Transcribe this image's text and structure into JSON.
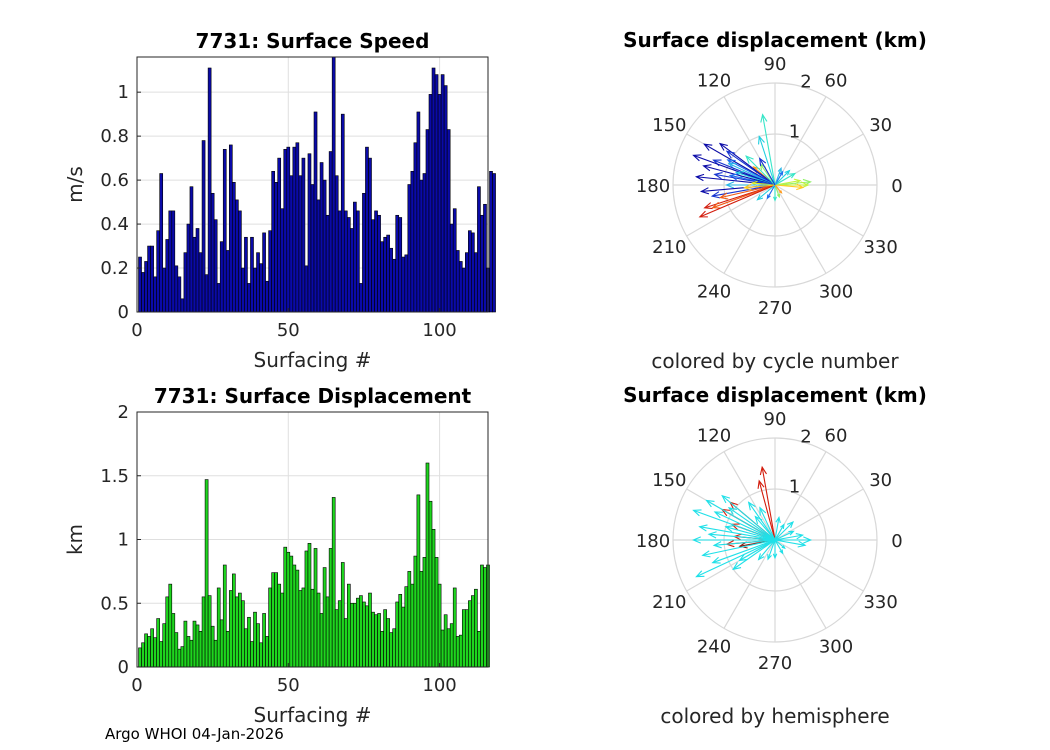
{
  "footer": {
    "label": "Argo WHOI 04-Jan-2026"
  },
  "chart_data": [
    {
      "id": "speed",
      "type": "bar",
      "title": "7731: Surface Speed",
      "xlabel": "Surfacing #",
      "ylabel": "m/s",
      "xlim": [
        0,
        116
      ],
      "ylim": [
        0,
        1.16
      ],
      "xticks": [
        0,
        50,
        100
      ],
      "yticks": [
        0,
        0.2,
        0.4,
        0.6,
        0.8,
        1
      ],
      "x_start": 1,
      "color": "#0a0aa8",
      "values": [
        0.25,
        0.18,
        0.23,
        0.3,
        0.3,
        0.16,
        0.37,
        0.63,
        0.2,
        0.33,
        0.46,
        0.46,
        0.21,
        0.16,
        0.06,
        0.27,
        0.4,
        0.57,
        0.34,
        0.38,
        0.27,
        0.78,
        0.17,
        1.11,
        0.54,
        0.42,
        0.13,
        0.32,
        0.74,
        0.28,
        0.76,
        0.59,
        0.51,
        0.46,
        0.2,
        0.34,
        0.13,
        0.34,
        0.2,
        0.27,
        0.22,
        0.36,
        0.14,
        0.37,
        0.64,
        0.59,
        0.7,
        0.47,
        0.74,
        0.75,
        0.62,
        0.75,
        0.77,
        0.62,
        0.7,
        0.21,
        0.72,
        0.58,
        0.91,
        0.51,
        0.68,
        0.6,
        0.44,
        0.73,
        1.16,
        0.62,
        0.46,
        0.9,
        0.46,
        0.43,
        0.38,
        0.5,
        0.46,
        0.13,
        0.54,
        0.75,
        0.7,
        0.42,
        0.46,
        0.44,
        0.32,
        0.34,
        0.35,
        0.29,
        0.24,
        0.44,
        0.43,
        0.25,
        0.26,
        0.58,
        0.64,
        0.77,
        0.91,
        0.6,
        0.63,
        0.83,
        0.99,
        1.11,
        1.08,
        0.99,
        1.08,
        1.03,
        0.83,
        0.4,
        0.47,
        0.28,
        0.23,
        0.2,
        0.27,
        0.37,
        0.36,
        0.27,
        0.57,
        0.44,
        0.49,
        0.2,
        0.64,
        0.63
      ]
    },
    {
      "id": "displacement",
      "type": "bar",
      "title": "7731: Surface Displacement",
      "xlabel": "Surfacing #",
      "ylabel": "km",
      "xlim": [
        0,
        116
      ],
      "ylim": [
        0,
        2
      ],
      "xticks": [
        0,
        50,
        100
      ],
      "yticks": [
        0,
        0.5,
        1,
        1.5,
        2
      ],
      "x_start": 1,
      "color": "#1ed51e",
      "values": [
        0.15,
        0.19,
        0.26,
        0.24,
        0.3,
        0.23,
        0.38,
        0.2,
        0.34,
        0.55,
        0.65,
        0.42,
        0.27,
        0.14,
        0.16,
        0.36,
        0.24,
        0.21,
        0.36,
        0.33,
        0.28,
        0.55,
        1.47,
        0.56,
        0.32,
        0.21,
        0.62,
        0.37,
        0.8,
        0.28,
        0.6,
        0.73,
        0.55,
        0.58,
        0.52,
        0.3,
        0.39,
        0.2,
        0.43,
        0.34,
        0.19,
        0.42,
        0.24,
        0.62,
        0.74,
        0.74,
        0.65,
        0.58,
        0.94,
        0.9,
        0.87,
        0.8,
        0.76,
        0.6,
        0.62,
        0.91,
        0.97,
        0.61,
        0.93,
        0.58,
        0.42,
        0.78,
        0.55,
        0.93,
        1.33,
        0.45,
        0.52,
        0.82,
        0.38,
        0.65,
        0.5,
        0.5,
        0.54,
        0.56,
        0.51,
        0.48,
        0.58,
        0.43,
        0.41,
        0.42,
        0.28,
        0.45,
        0.38,
        0.27,
        0.3,
        0.51,
        0.57,
        0.47,
        0.63,
        0.75,
        0.65,
        0.87,
        1.35,
        0.75,
        0.86,
        1.6,
        1.3,
        1.08,
        0.86,
        0.65,
        0.29,
        0.41,
        0.3,
        0.34,
        0.62,
        0.24,
        0.25,
        0.45,
        0.45,
        0.52,
        0.56,
        0.61,
        0.28,
        0.8,
        0.78,
        0.8
      ]
    },
    {
      "id": "polar-cycle",
      "type": "polar-quiver",
      "title": "Surface displacement (km)",
      "subtitle": "colored by cycle number",
      "rlim": [
        0,
        2
      ],
      "r_ticks": [
        "1",
        "2"
      ],
      "theta_ticks": [
        "0",
        "30",
        "60",
        "90",
        "120",
        "150",
        "180",
        "210",
        "240",
        "270",
        "300",
        "330"
      ],
      "vectors": [
        {
          "angle_deg": 100,
          "r_km": 1.4,
          "color": "#37e6c8"
        },
        {
          "angle_deg": 108,
          "r_km": 1.0,
          "color": "#20cfe0"
        },
        {
          "angle_deg": 140,
          "r_km": 0.55,
          "color": "#ff9a1a"
        },
        {
          "angle_deg": 143,
          "r_km": 1.35,
          "color": "#0a0aa8"
        },
        {
          "angle_deg": 145,
          "r_km": 1.15,
          "color": "#1533d0"
        },
        {
          "angle_deg": 150,
          "r_km": 1.6,
          "color": "#0a0aa8"
        },
        {
          "angle_deg": 152,
          "r_km": 1.05,
          "color": "#1c6df0"
        },
        {
          "angle_deg": 155,
          "r_km": 1.0,
          "color": "#2bb8e8"
        },
        {
          "angle_deg": 158,
          "r_km": 1.3,
          "color": "#1533d0"
        },
        {
          "angle_deg": 160,
          "r_km": 1.7,
          "color": "#0a0aa8"
        },
        {
          "angle_deg": 162,
          "r_km": 0.8,
          "color": "#20cfe0"
        },
        {
          "angle_deg": 165,
          "r_km": 1.45,
          "color": "#0a0aa8"
        },
        {
          "angle_deg": 168,
          "r_km": 0.9,
          "color": "#1c6df0"
        },
        {
          "angle_deg": 170,
          "r_km": 1.2,
          "color": "#1533d0"
        },
        {
          "angle_deg": 174,
          "r_km": 1.55,
          "color": "#0a0aa8"
        },
        {
          "angle_deg": 175,
          "r_km": 0.45,
          "color": "#e0f020"
        },
        {
          "angle_deg": 180,
          "r_km": 0.95,
          "color": "#2bb8e8"
        },
        {
          "angle_deg": 185,
          "r_km": 1.45,
          "color": "#0a0aa8"
        },
        {
          "angle_deg": 190,
          "r_km": 1.25,
          "color": "#1533d0"
        },
        {
          "angle_deg": 193,
          "r_km": 1.1,
          "color": "#f05a14"
        },
        {
          "angle_deg": 198,
          "r_km": 1.45,
          "color": "#d31c0c"
        },
        {
          "angle_deg": 200,
          "r_km": 1.3,
          "color": "#f05a14"
        },
        {
          "angle_deg": 203,
          "r_km": 1.6,
          "color": "#d31c0c"
        },
        {
          "angle_deg": 185,
          "r_km": 0.6,
          "color": "#ffc91e"
        },
        {
          "angle_deg": 10,
          "r_km": 0.5,
          "color": "#c4f23c"
        },
        {
          "angle_deg": 5,
          "r_km": 0.7,
          "color": "#92f26a"
        },
        {
          "angle_deg": 0,
          "r_km": 0.65,
          "color": "#c4f23c"
        },
        {
          "angle_deg": 355,
          "r_km": 0.55,
          "color": "#ffc91e"
        },
        {
          "angle_deg": 30,
          "r_km": 0.45,
          "color": "#37e6c8"
        },
        {
          "angle_deg": 45,
          "r_km": 0.4,
          "color": "#20cfe0"
        },
        {
          "angle_deg": 60,
          "r_km": 0.3,
          "color": "#1c6df0"
        },
        {
          "angle_deg": 70,
          "r_km": 0.35,
          "color": "#2bb8e8"
        },
        {
          "angle_deg": 270,
          "r_km": 0.3,
          "color": "#37e6c8"
        },
        {
          "angle_deg": 290,
          "r_km": 0.25,
          "color": "#92f26a"
        },
        {
          "angle_deg": 240,
          "r_km": 0.3,
          "color": "#1c6df0"
        },
        {
          "angle_deg": 220,
          "r_km": 0.45,
          "color": "#20cfe0"
        },
        {
          "angle_deg": 125,
          "r_km": 0.5,
          "color": "#92f26a"
        },
        {
          "angle_deg": 135,
          "r_km": 0.8,
          "color": "#37e6c8"
        },
        {
          "angle_deg": 120,
          "r_km": 0.6,
          "color": "#1533d0"
        },
        {
          "angle_deg": 310,
          "r_km": 0.2,
          "color": "#ff9a1a"
        }
      ]
    },
    {
      "id": "polar-hemisphere",
      "type": "polar-quiver",
      "title": "Surface displacement (km)",
      "subtitle": "colored by hemisphere",
      "rlim": [
        0,
        2
      ],
      "r_ticks": [
        "1",
        "2"
      ],
      "theta_ticks": [
        "0",
        "30",
        "60",
        "90",
        "120",
        "150",
        "180",
        "210",
        "240",
        "270",
        "300",
        "330"
      ],
      "vectors": [
        {
          "angle_deg": 100,
          "r_km": 1.45,
          "color": "#d31c0c"
        },
        {
          "angle_deg": 105,
          "r_km": 1.2,
          "color": "#d31c0c"
        },
        {
          "angle_deg": 140,
          "r_km": 1.15,
          "color": "#d31c0c"
        },
        {
          "angle_deg": 150,
          "r_km": 1.2,
          "color": "#d31c0c"
        },
        {
          "angle_deg": 160,
          "r_km": 0.9,
          "color": "#d31c0c"
        },
        {
          "angle_deg": 185,
          "r_km": 0.95,
          "color": "#d31c0c"
        },
        {
          "angle_deg": 190,
          "r_km": 0.7,
          "color": "#8a1a10"
        },
        {
          "angle_deg": 175,
          "r_km": 0.8,
          "color": "#d31c0c"
        },
        {
          "angle_deg": 140,
          "r_km": 1.35,
          "color": "#20e0e8"
        },
        {
          "angle_deg": 145,
          "r_km": 1.1,
          "color": "#20e0e8"
        },
        {
          "angle_deg": 150,
          "r_km": 1.55,
          "color": "#20e0e8"
        },
        {
          "angle_deg": 155,
          "r_km": 1.3,
          "color": "#20e0e8"
        },
        {
          "angle_deg": 160,
          "r_km": 1.7,
          "color": "#20e0e8"
        },
        {
          "angle_deg": 165,
          "r_km": 1.0,
          "color": "#20e0e8"
        },
        {
          "angle_deg": 170,
          "r_km": 1.5,
          "color": "#20e0e8"
        },
        {
          "angle_deg": 175,
          "r_km": 1.3,
          "color": "#20e0e8"
        },
        {
          "angle_deg": 180,
          "r_km": 1.6,
          "color": "#20e0e8"
        },
        {
          "angle_deg": 185,
          "r_km": 1.2,
          "color": "#20e0e8"
        },
        {
          "angle_deg": 192,
          "r_km": 1.45,
          "color": "#20e0e8"
        },
        {
          "angle_deg": 200,
          "r_km": 1.3,
          "color": "#20e0e8"
        },
        {
          "angle_deg": 205,
          "r_km": 1.7,
          "color": "#20e0e8"
        },
        {
          "angle_deg": 215,
          "r_km": 1.0,
          "color": "#20e0e8"
        },
        {
          "angle_deg": 230,
          "r_km": 0.5,
          "color": "#20e0e8"
        },
        {
          "angle_deg": 250,
          "r_km": 0.4,
          "color": "#20e0e8"
        },
        {
          "angle_deg": 270,
          "r_km": 0.35,
          "color": "#20e0e8"
        },
        {
          "angle_deg": 300,
          "r_km": 0.3,
          "color": "#20e0e8"
        },
        {
          "angle_deg": 0,
          "r_km": 0.7,
          "color": "#20e0e8"
        },
        {
          "angle_deg": 10,
          "r_km": 0.55,
          "color": "#20e0e8"
        },
        {
          "angle_deg": 350,
          "r_km": 0.6,
          "color": "#20e0e8"
        },
        {
          "angle_deg": 25,
          "r_km": 0.4,
          "color": "#20e0e8"
        },
        {
          "angle_deg": 45,
          "r_km": 0.5,
          "color": "#20e0e8"
        },
        {
          "angle_deg": 60,
          "r_km": 0.35,
          "color": "#20e0e8"
        },
        {
          "angle_deg": 80,
          "r_km": 0.45,
          "color": "#20e0e8"
        },
        {
          "angle_deg": 115,
          "r_km": 0.7,
          "color": "#20e0e8"
        },
        {
          "angle_deg": 125,
          "r_km": 0.9,
          "color": "#20e0e8"
        },
        {
          "angle_deg": 130,
          "r_km": 0.6,
          "color": "#20e0e8"
        },
        {
          "angle_deg": 320,
          "r_km": 0.25,
          "color": "#20e0e8"
        },
        {
          "angle_deg": 210,
          "r_km": 0.8,
          "color": "#20e0e8"
        }
      ]
    }
  ]
}
